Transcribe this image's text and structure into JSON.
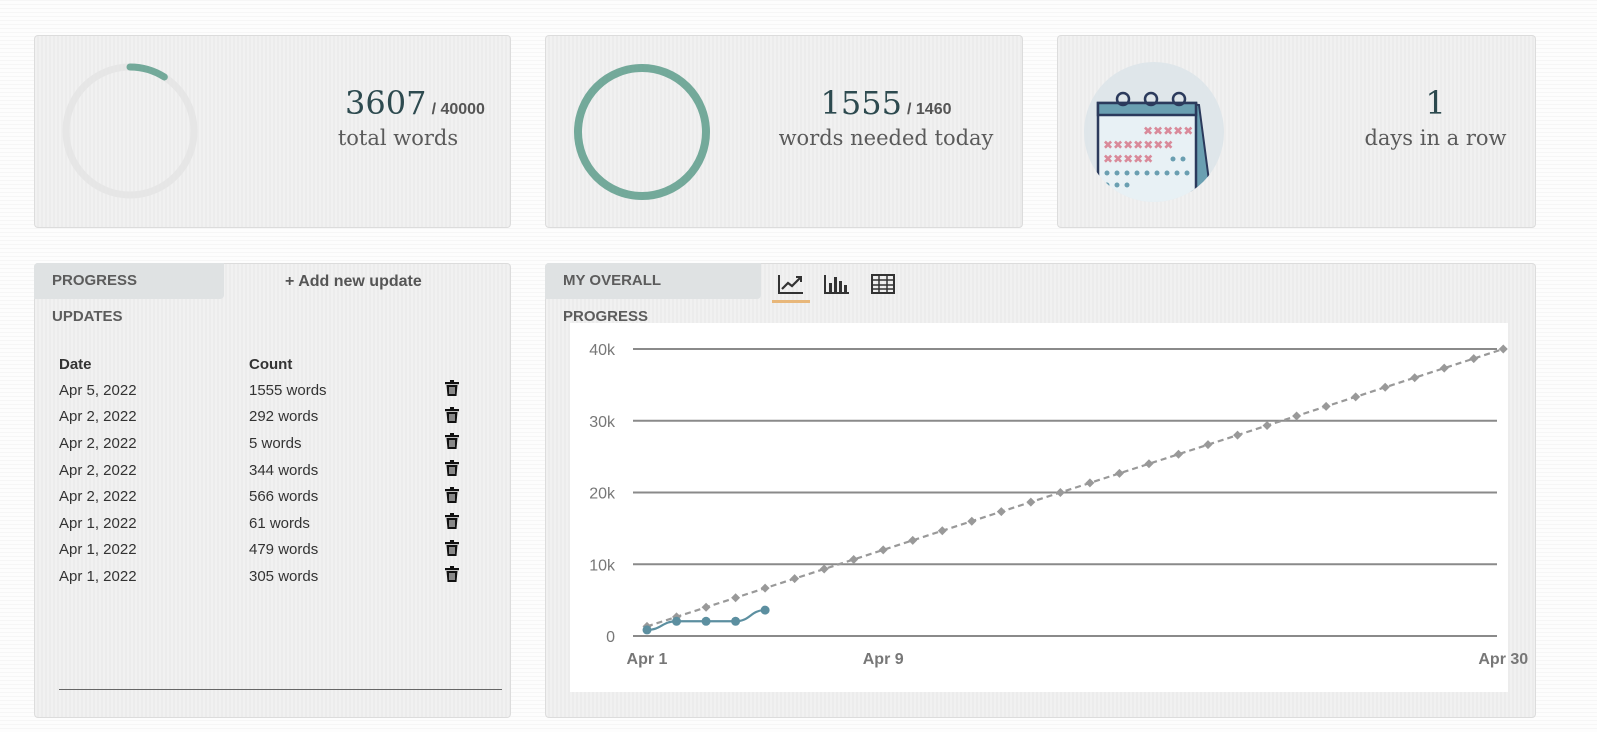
{
  "stats": {
    "total": {
      "value": "3607",
      "goal": "/ 40000",
      "label": "total words",
      "progress": 0.09,
      "color": "#73a99a"
    },
    "today": {
      "value": "1555",
      "goal": "/ 1460",
      "label": "words needed today",
      "progress": 1.0,
      "color": "#73a99a"
    },
    "streak": {
      "value": "1",
      "label": "days in a row",
      "icon": "calendar-icon"
    }
  },
  "updates": {
    "tab_label": "PROGRESS UPDATES",
    "add_label": "+ Add new update",
    "headers": [
      "Date",
      "Count"
    ],
    "rows": [
      {
        "date": "Apr 5, 2022",
        "count": "1555 words"
      },
      {
        "date": "Apr 2, 2022",
        "count": "292 words"
      },
      {
        "date": "Apr 2, 2022",
        "count": "5 words"
      },
      {
        "date": "Apr 2, 2022",
        "count": "344 words"
      },
      {
        "date": "Apr 2, 2022",
        "count": "566 words"
      },
      {
        "date": "Apr 1, 2022",
        "count": "61 words"
      },
      {
        "date": "Apr 1, 2022",
        "count": "479 words"
      },
      {
        "date": "Apr 1, 2022",
        "count": "305 words"
      }
    ]
  },
  "progress_panel": {
    "tab_label": "MY OVERALL PROGRESS",
    "views": [
      "line-chart-icon",
      "bar-chart-icon",
      "table-icon"
    ],
    "active_view": 0
  },
  "chart_data": {
    "type": "line",
    "x_ticks": [
      1,
      9,
      30
    ],
    "x_tick_labels": [
      "Apr 1",
      "Apr 9",
      "Apr 30"
    ],
    "y_ticks": [
      0,
      10000,
      20000,
      30000,
      40000
    ],
    "y_tick_labels": [
      "0",
      "10k",
      "20k",
      "30k",
      "40k"
    ],
    "xlim": [
      1,
      30.6
    ],
    "ylim": [
      0,
      40000
    ],
    "grid": true,
    "series": [
      {
        "style": "dashed-diamond",
        "color": "#999999",
        "x": [
          1,
          2,
          3,
          4,
          5,
          6,
          7,
          8,
          9,
          10,
          11,
          12,
          13,
          14,
          15,
          16,
          17,
          18,
          19,
          20,
          21,
          22,
          23,
          24,
          25,
          26,
          27,
          28,
          29,
          30
        ],
        "values": [
          1333,
          2667,
          4000,
          5333,
          6667,
          8000,
          9333,
          10667,
          12000,
          13333,
          14667,
          16000,
          17333,
          18667,
          20000,
          21333,
          22667,
          24000,
          25333,
          26667,
          28000,
          29333,
          30667,
          32000,
          33333,
          34667,
          36000,
          37333,
          38667,
          40000
        ]
      },
      {
        "style": "solid-circle",
        "color": "#5c8fa0",
        "x": [
          1,
          2,
          3,
          4,
          5
        ],
        "values": [
          845,
          2052,
          2052,
          2052,
          3607
        ]
      }
    ]
  }
}
